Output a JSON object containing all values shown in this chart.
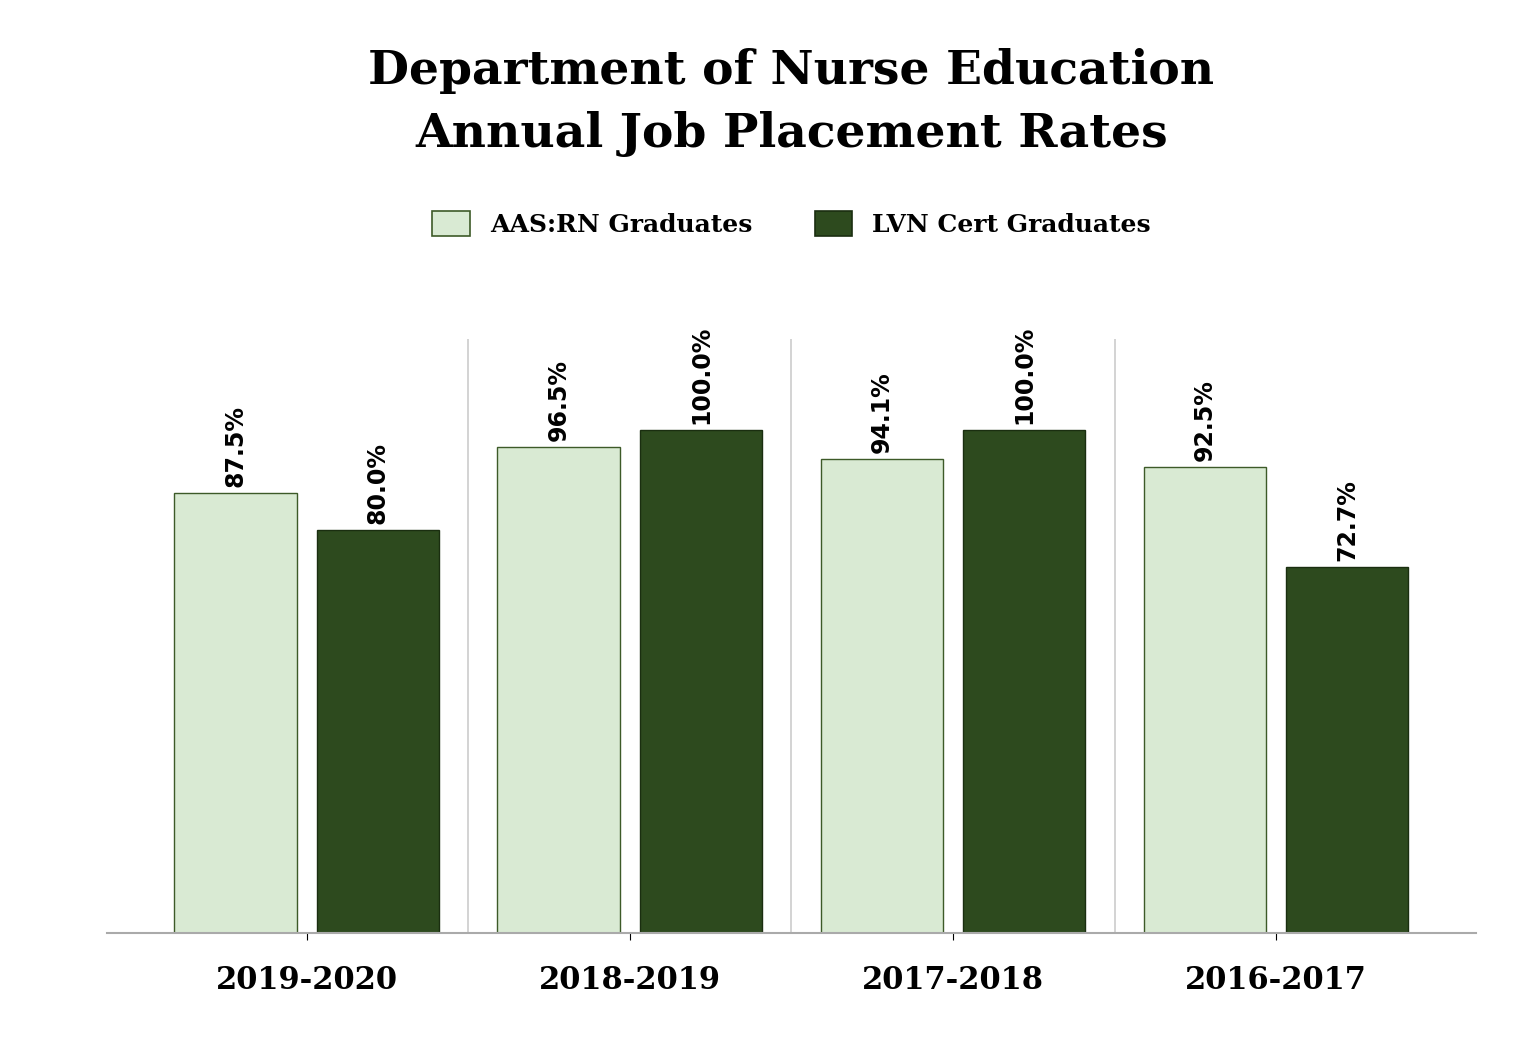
{
  "title_line1": "Department of Nurse Education",
  "title_line2": "Annual Job Placement Rates",
  "categories": [
    "2019-2020",
    "2018-2019",
    "2017-2018",
    "2016-2017"
  ],
  "aas_rn_values": [
    87.5,
    96.5,
    94.1,
    92.5
  ],
  "lvn_cert_values": [
    80.0,
    100.0,
    100.0,
    72.7
  ],
  "aas_rn_labels": [
    "87.5%",
    "96.5%",
    "94.1%",
    "92.5%"
  ],
  "lvn_cert_labels": [
    "80.0%",
    "100.0%",
    "100.0%",
    "72.7%"
  ],
  "aas_rn_color": "#d9ead3",
  "lvn_cert_color": "#2d4a1e",
  "legend_aas_label": "AAS:RN Graduates",
  "legend_lvn_label": "LVN Cert Graduates",
  "bar_width": 0.38,
  "ylim": [
    0,
    118
  ],
  "background_color": "#ffffff",
  "title_fontsize": 34,
  "label_fontsize": 17,
  "tick_fontsize": 22,
  "legend_fontsize": 18
}
